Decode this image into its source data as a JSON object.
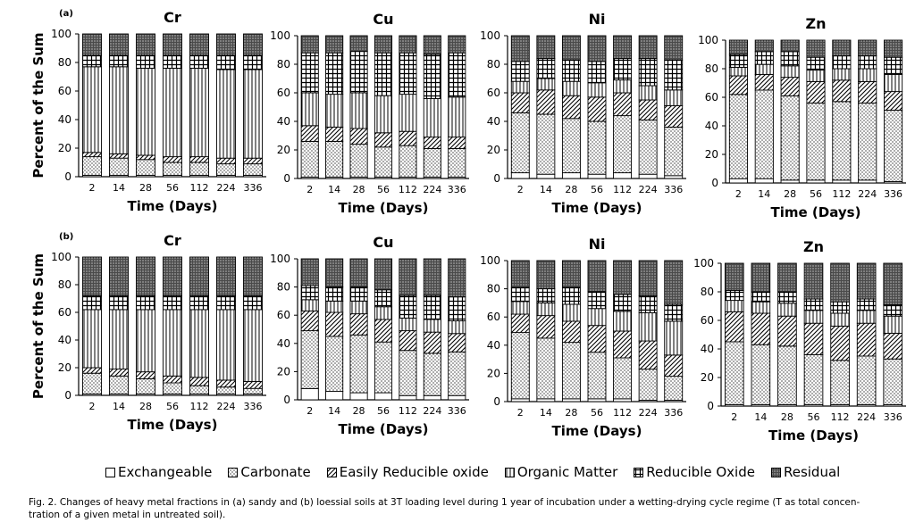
{
  "chart_data": [
    {
      "type": "bar",
      "panel_label": "(a)",
      "title": "Cr",
      "ylabel": "Percent of the Sum",
      "xlabel": "Time (Days)",
      "ylim": [
        0,
        100
      ],
      "yticks": [
        "0",
        "20",
        "40",
        "60",
        "80",
        "100"
      ],
      "categories": [
        "2",
        "14",
        "28",
        "56",
        "112",
        "224",
        "336"
      ],
      "stacked": true,
      "series": [
        {
          "name": "Exchangeable",
          "values": [
            1,
            1,
            1,
            1,
            1,
            1,
            1
          ]
        },
        {
          "name": "Carbonate",
          "values": [
            13,
            12,
            11,
            9,
            9,
            8,
            8
          ]
        },
        {
          "name": "Easily Reducible oxide",
          "values": [
            3,
            3,
            3,
            4,
            4,
            4,
            4
          ]
        },
        {
          "name": "Organic Matter",
          "values": [
            60,
            61,
            61,
            62,
            62,
            62,
            62
          ]
        },
        {
          "name": "Reducible Oxide",
          "values": [
            8,
            8,
            9,
            9,
            9,
            10,
            10
          ]
        },
        {
          "name": "Residual",
          "values": [
            15,
            15,
            15,
            15,
            15,
            15,
            15
          ]
        }
      ]
    },
    {
      "type": "bar",
      "title": "Cu",
      "ylabel": "",
      "xlabel": "Time (Days)",
      "ylim": [
        0,
        100
      ],
      "yticks": [
        "0",
        "20",
        "40",
        "60",
        "80",
        "100"
      ],
      "categories": [
        "2",
        "14",
        "28",
        "56",
        "112",
        "224",
        "336"
      ],
      "stacked": true,
      "series": [
        {
          "name": "Exchangeable",
          "values": [
            1,
            1,
            1,
            1,
            1,
            1,
            1
          ]
        },
        {
          "name": "Carbonate",
          "values": [
            25,
            25,
            23,
            21,
            22,
            20,
            20
          ]
        },
        {
          "name": "Easily Reducible oxide",
          "values": [
            11,
            10,
            11,
            10,
            10,
            8,
            8
          ]
        },
        {
          "name": "Organic Matter",
          "values": [
            23,
            23,
            25,
            26,
            26,
            27,
            28
          ]
        },
        {
          "name": "Reducible Oxide",
          "values": [
            28,
            29,
            29,
            30,
            29,
            31,
            31
          ]
        },
        {
          "name": "Residual",
          "values": [
            12,
            12,
            11,
            12,
            12,
            13,
            12
          ]
        }
      ]
    },
    {
      "type": "bar",
      "title": "Ni",
      "ylabel": "",
      "xlabel": "Time (Days)",
      "ylim": [
        0,
        100
      ],
      "yticks": [
        "0",
        "20",
        "40",
        "60",
        "80",
        "100"
      ],
      "categories": [
        "2",
        "14",
        "28",
        "56",
        "112",
        "224",
        "336"
      ],
      "stacked": true,
      "series": [
        {
          "name": "Exchangeable",
          "values": [
            4,
            3,
            4,
            3,
            4,
            3,
            2
          ]
        },
        {
          "name": "Carbonate",
          "values": [
            42,
            42,
            38,
            37,
            40,
            38,
            34
          ]
        },
        {
          "name": "Easily Reducible oxide",
          "values": [
            14,
            17,
            16,
            17,
            16,
            14,
            15
          ]
        },
        {
          "name": "Organic Matter",
          "values": [
            8,
            8,
            10,
            10,
            9,
            10,
            11
          ]
        },
        {
          "name": "Reducible Oxide",
          "values": [
            14,
            14,
            15,
            15,
            15,
            19,
            21
          ]
        },
        {
          "name": "Residual",
          "values": [
            18,
            16,
            17,
            18,
            16,
            16,
            17
          ]
        }
      ]
    },
    {
      "type": "bar",
      "title": "Zn",
      "ylabel": "",
      "xlabel": "Time (Days)",
      "ylim": [
        0,
        100
      ],
      "yticks": [
        "0",
        "20",
        "40",
        "60",
        "80",
        "100"
      ],
      "categories": [
        "2",
        "14",
        "28",
        "56",
        "112",
        "224",
        "336"
      ],
      "stacked": true,
      "series": [
        {
          "name": "Exchangeable",
          "values": [
            3,
            3,
            2,
            2,
            2,
            2,
            1
          ]
        },
        {
          "name": "Carbonate",
          "values": [
            59,
            62,
            59,
            54,
            55,
            54,
            50
          ]
        },
        {
          "name": "Easily Reducible oxide",
          "values": [
            13,
            11,
            13,
            15,
            15,
            15,
            13
          ]
        },
        {
          "name": "Organic Matter",
          "values": [
            6,
            7,
            8,
            8,
            8,
            9,
            12
          ]
        },
        {
          "name": "Reducible Oxide",
          "values": [
            9,
            9,
            10,
            9,
            9,
            9,
            12
          ]
        },
        {
          "name": "Residual",
          "values": [
            10,
            8,
            8,
            12,
            11,
            11,
            12
          ]
        }
      ]
    },
    {
      "type": "bar",
      "panel_label": "(b)",
      "title": "Cr",
      "ylabel": "Percent of the Sum",
      "xlabel": "Time (Days)",
      "ylim": [
        0,
        100
      ],
      "yticks": [
        "0",
        "20",
        "40",
        "60",
        "80",
        "100"
      ],
      "categories": [
        "2",
        "14",
        "28",
        "56",
        "112",
        "224",
        "336"
      ],
      "stacked": true,
      "series": [
        {
          "name": "Exchangeable",
          "values": [
            1,
            1,
            1,
            1,
            1,
            1,
            1
          ]
        },
        {
          "name": "Carbonate",
          "values": [
            15,
            13,
            11,
            8,
            6,
            5,
            4
          ]
        },
        {
          "name": "Easily Reducible oxide",
          "values": [
            4,
            5,
            5,
            5,
            6,
            5,
            5
          ]
        },
        {
          "name": "Organic Matter",
          "values": [
            42,
            43,
            45,
            48,
            49,
            51,
            52
          ]
        },
        {
          "name": "Reducible Oxide",
          "values": [
            10,
            10,
            10,
            10,
            10,
            10,
            10
          ]
        },
        {
          "name": "Residual",
          "values": [
            28,
            28,
            28,
            28,
            28,
            28,
            28
          ]
        }
      ]
    },
    {
      "type": "bar",
      "title": "Cu",
      "ylabel": "",
      "xlabel": "Time (Days)",
      "ylim": [
        0,
        100
      ],
      "yticks": [
        "0",
        "20",
        "40",
        "60",
        "80",
        "100"
      ],
      "categories": [
        "2",
        "14",
        "28",
        "56",
        "112",
        "224",
        "336"
      ],
      "stacked": true,
      "series": [
        {
          "name": "Exchangeable",
          "values": [
            8,
            6,
            5,
            5,
            3,
            3,
            3
          ]
        },
        {
          "name": "Carbonate",
          "values": [
            41,
            39,
            41,
            36,
            32,
            30,
            31
          ]
        },
        {
          "name": "Easily Reducible oxide",
          "values": [
            14,
            17,
            15,
            16,
            14,
            15,
            13
          ]
        },
        {
          "name": "Organic Matter",
          "values": [
            8,
            8,
            9,
            9,
            9,
            9,
            9
          ]
        },
        {
          "name": "Reducible Oxide",
          "values": [
            10,
            10,
            10,
            12,
            16,
            17,
            17
          ]
        },
        {
          "name": "Residual",
          "values": [
            19,
            20,
            20,
            22,
            26,
            26,
            27
          ]
        }
      ]
    },
    {
      "type": "bar",
      "title": "Ni",
      "ylabel": "",
      "xlabel": "Time (Days)",
      "ylim": [
        0,
        100
      ],
      "yticks": [
        "0",
        "20",
        "40",
        "60",
        "80",
        "100"
      ],
      "categories": [
        "2",
        "14",
        "28",
        "56",
        "112",
        "224",
        "336"
      ],
      "stacked": true,
      "series": [
        {
          "name": "Exchangeable",
          "values": [
            2,
            2,
            2,
            2,
            2,
            1,
            1
          ]
        },
        {
          "name": "Carbonate",
          "values": [
            47,
            43,
            40,
            33,
            29,
            22,
            17
          ]
        },
        {
          "name": "Easily Reducible oxide",
          "values": [
            13,
            16,
            15,
            19,
            19,
            20,
            15
          ]
        },
        {
          "name": "Organic Matter",
          "values": [
            9,
            9,
            12,
            12,
            14,
            20,
            24
          ]
        },
        {
          "name": "Reducible Oxide",
          "values": [
            10,
            10,
            12,
            12,
            12,
            12,
            12
          ]
        },
        {
          "name": "Residual",
          "values": [
            19,
            20,
            19,
            22,
            24,
            25,
            31
          ]
        }
      ]
    },
    {
      "type": "bar",
      "title": "Zn",
      "ylabel": "",
      "xlabel": "Time (Days)",
      "ylim": [
        0,
        100
      ],
      "yticks": [
        "0",
        "20",
        "40",
        "60",
        "80",
        "100"
      ],
      "categories": [
        "2",
        "14",
        "28",
        "56",
        "112",
        "224",
        "336"
      ],
      "stacked": true,
      "series": [
        {
          "name": "Exchangeable",
          "values": [
            1,
            1,
            1,
            1,
            1,
            1,
            1
          ]
        },
        {
          "name": "Carbonate",
          "values": [
            44,
            42,
            41,
            35,
            31,
            34,
            32
          ]
        },
        {
          "name": "Easily Reducible oxide",
          "values": [
            21,
            22,
            21,
            22,
            24,
            23,
            18
          ]
        },
        {
          "name": "Organic Matter",
          "values": [
            8,
            8,
            9,
            9,
            9,
            9,
            12
          ]
        },
        {
          "name": "Reducible Oxide",
          "values": [
            7,
            7,
            8,
            8,
            8,
            8,
            8
          ]
        },
        {
          "name": "Residual",
          "values": [
            19,
            20,
            20,
            25,
            27,
            25,
            29
          ]
        }
      ]
    }
  ],
  "legend": [
    {
      "label": "Exchangeable",
      "pattern": "blank"
    },
    {
      "label": "Carbonate",
      "pattern": "dots"
    },
    {
      "label": "Easily Reducible oxide",
      "pattern": "diagonal-hatch"
    },
    {
      "label": "Organic Matter",
      "pattern": "vertical-lines"
    },
    {
      "label": "Reducible Oxide",
      "pattern": "grid"
    },
    {
      "label": "Residual",
      "pattern": "dense-crosshatch"
    }
  ],
  "caption": {
    "line1": "Fig. 2. Changes of heavy metal fractions in (a) sandy and (b) loessial soils at 3T loading level during 1 year of incubation under a wetting-drying cycle regime (T as total concen-",
    "line2": "tration of a given metal in untreated soil)."
  },
  "colors": {
    "ink": "#000000",
    "paper": "#ffffff",
    "residual_fill": "#4a4a4a"
  }
}
